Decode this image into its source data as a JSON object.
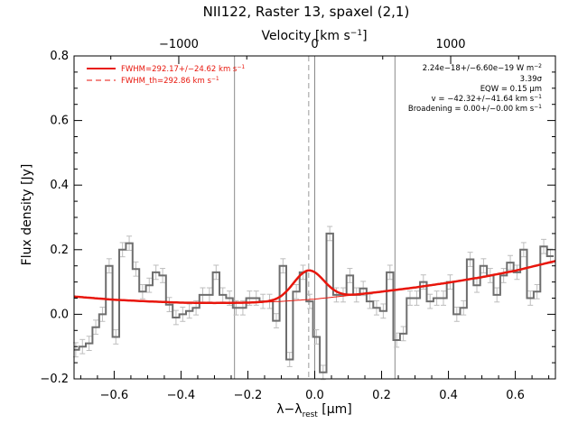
{
  "chart_data": {
    "type": "line",
    "title": "NII122, Raster 13, spaxel (2,1)",
    "xlabel_parts": [
      "λ−λ",
      "rest",
      " [μm]"
    ],
    "ylabel": "Flux density [Jy]",
    "top_axis": {
      "label_parts": [
        "Velocity [km s",
        "−1",
        "]"
      ],
      "ticks": [
        {
          "label": "−1000",
          "x": -0.4067
        },
        {
          "label": "0",
          "x": 0.0
        },
        {
          "label": "1000",
          "x": 0.4067
        }
      ]
    },
    "xlim": [
      -0.72,
      0.72
    ],
    "ylim": [
      -0.2,
      0.8
    ],
    "x_ticks": [
      -0.6,
      -0.4,
      -0.2,
      0.0,
      0.2,
      0.4,
      0.6
    ],
    "x_tick_labels": [
      "−0.6",
      "−0.4",
      "−0.2",
      "0.0",
      "0.2",
      "0.4",
      "0.6"
    ],
    "y_ticks": [
      -0.2,
      0.0,
      0.2,
      0.4,
      0.6,
      0.8
    ],
    "y_tick_labels": [
      "−0.2",
      "0.0",
      "0.2",
      "0.4",
      "0.6",
      "0.8"
    ],
    "vertical_lines": [
      -0.24,
      0.0,
      0.24
    ],
    "line_center_dashed": -0.018,
    "legend": [
      {
        "label_parts": [
          "FWHM=292.17+/−24.62 km s",
          "−1"
        ],
        "style": "solid"
      },
      {
        "label_parts": [
          "FWHM_th=292.86 km s",
          "−1"
        ],
        "style": "dashed"
      }
    ],
    "annotations": [
      {
        "parts": [
          "2.24e−18+/−6.60e−19 W m",
          "−2"
        ]
      },
      {
        "parts": [
          "3.39σ"
        ]
      },
      {
        "parts": [
          "EQW = 0.15 μm"
        ]
      },
      {
        "parts": [
          "v = −42.32+/−41.64 km s",
          "−1"
        ]
      },
      {
        "parts": [
          "Broadening = 0.00+/−0.00 km s",
          "−1"
        ]
      }
    ],
    "spectrum": {
      "x": [
        -0.715,
        -0.695,
        -0.675,
        -0.655,
        -0.635,
        -0.615,
        -0.595,
        -0.575,
        -0.555,
        -0.535,
        -0.515,
        -0.495,
        -0.475,
        -0.455,
        -0.435,
        -0.415,
        -0.395,
        -0.375,
        -0.355,
        -0.335,
        -0.315,
        -0.295,
        -0.275,
        -0.255,
        -0.235,
        -0.215,
        -0.195,
        -0.175,
        -0.155,
        -0.135,
        -0.115,
        -0.095,
        -0.075,
        -0.055,
        -0.035,
        -0.015,
        0.005,
        0.025,
        0.045,
        0.065,
        0.085,
        0.105,
        0.125,
        0.145,
        0.165,
        0.185,
        0.205,
        0.225,
        0.245,
        0.265,
        0.285,
        0.305,
        0.325,
        0.345,
        0.365,
        0.385,
        0.405,
        0.425,
        0.445,
        0.465,
        0.485,
        0.505,
        0.525,
        0.545,
        0.565,
        0.585,
        0.605,
        0.625,
        0.645,
        0.665,
        0.685,
        0.705
      ],
      "y": [
        -0.11,
        -0.1,
        -0.09,
        -0.04,
        0.0,
        0.15,
        -0.07,
        0.2,
        0.22,
        0.14,
        0.07,
        0.09,
        0.13,
        0.12,
        0.03,
        -0.01,
        0.0,
        0.01,
        0.02,
        0.06,
        0.06,
        0.13,
        0.06,
        0.05,
        0.02,
        0.02,
        0.05,
        0.05,
        0.04,
        0.04,
        -0.02,
        0.15,
        -0.14,
        0.07,
        0.13,
        0.04,
        -0.07,
        -0.18,
        0.25,
        0.06,
        0.06,
        0.12,
        0.06,
        0.08,
        0.04,
        0.02,
        0.01,
        0.13,
        -0.08,
        -0.06,
        0.05,
        0.05,
        0.1,
        0.04,
        0.05,
        0.05,
        0.1,
        0.0,
        0.02,
        0.17,
        0.09,
        0.15,
        0.12,
        0.06,
        0.12,
        0.16,
        0.13,
        0.2,
        0.05,
        0.07,
        0.21,
        0.18
      ],
      "err": 0.022
    },
    "fit_model": {
      "continuum_points": [
        [
          -0.72,
          0.055
        ],
        [
          -0.6,
          0.045
        ],
        [
          -0.5,
          0.04
        ],
        [
          -0.4,
          0.036
        ],
        [
          -0.3,
          0.035
        ],
        [
          -0.2,
          0.036
        ],
        [
          -0.1,
          0.04
        ],
        [
          0.0,
          0.047
        ],
        [
          0.1,
          0.058
        ],
        [
          0.2,
          0.07
        ],
        [
          0.3,
          0.083
        ],
        [
          0.4,
          0.098
        ],
        [
          0.5,
          0.115
        ],
        [
          0.6,
          0.135
        ],
        [
          0.72,
          0.165
        ]
      ],
      "gaussian": {
        "center": -0.018,
        "amplitude": 0.09,
        "sigma": 0.045
      }
    }
  }
}
